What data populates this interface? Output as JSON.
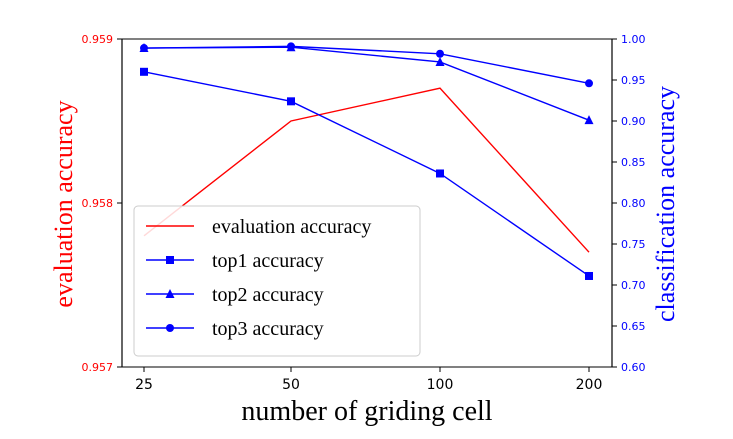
{
  "chart_data": {
    "type": "line",
    "categories": [
      "25",
      "50",
      "100",
      "200"
    ],
    "xlabel": "number of griding cell",
    "left_axis": {
      "label": "evaluation accuracy",
      "color": "#ff0000",
      "ylim": [
        0.957,
        0.959
      ],
      "ticks": [
        "0.957",
        "0.958",
        "0.959"
      ]
    },
    "right_axis": {
      "label": "classification accuracy",
      "color": "#0000ff",
      "ylim": [
        0.6,
        1.0
      ],
      "ticks": [
        "0.60",
        "0.65",
        "0.70",
        "0.75",
        "0.80",
        "0.85",
        "0.90",
        "0.95",
        "1.00"
      ]
    },
    "series": [
      {
        "name": "evaluation accuracy",
        "axis": "left",
        "color": "#ff0000",
        "marker": "none",
        "values": [
          0.9578,
          0.9585,
          0.9587,
          0.9577
        ]
      },
      {
        "name": "top1 accuracy",
        "axis": "right",
        "color": "#0000ff",
        "marker": "square",
        "values": [
          0.96,
          0.924,
          0.836,
          0.711
        ]
      },
      {
        "name": "top2 accuracy",
        "axis": "right",
        "color": "#0000ff",
        "marker": "triangle",
        "values": [
          0.989,
          0.99,
          0.972,
          0.901
        ]
      },
      {
        "name": "top3 accuracy",
        "axis": "right",
        "color": "#0000ff",
        "marker": "circle",
        "values": [
          0.989,
          0.991,
          0.982,
          0.946
        ]
      }
    ],
    "grid": false,
    "legend_position": "lower-left"
  }
}
